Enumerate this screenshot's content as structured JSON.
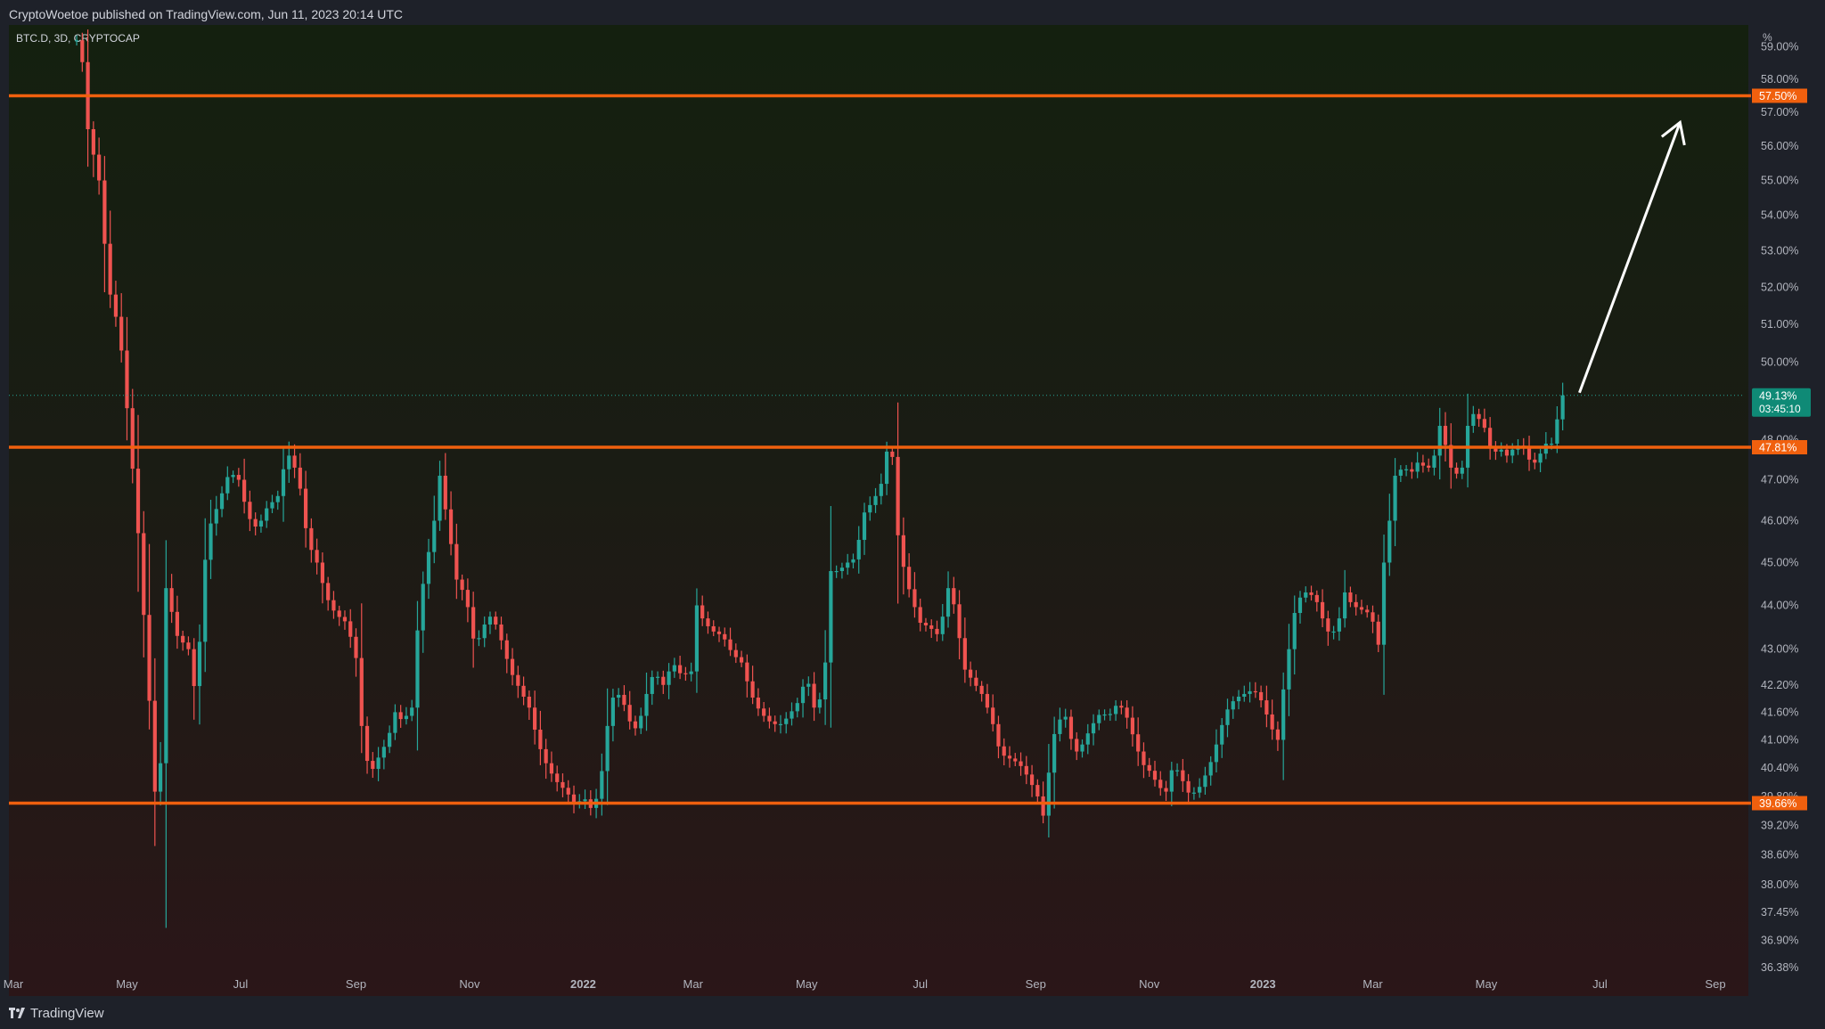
{
  "header": {
    "published_by": "CryptoWoetoe published on TradingView.com, Jun 11, 2023 20:14 UTC"
  },
  "footer": {
    "brand": "TradingView"
  },
  "colors": {
    "up": "#26a69a",
    "down": "#ef5350",
    "level_line": "#f0600e",
    "last_price_bg": "#0f8a76",
    "axis_text": "#b2b5be",
    "arrow": "#ffffff"
  },
  "chart_data": {
    "type": "candlestick",
    "symbol_label": "BTC.D, 3D, CRYPTOCAP",
    "y_unit": "%",
    "y_scale": "log",
    "ylim": [
      36.2,
      59.2
    ],
    "xlim": [
      "2021-03-01",
      "2023-09-30"
    ],
    "x_ticks": [
      {
        "date": "2021-03-01",
        "label": "Mar",
        "bold": false
      },
      {
        "date": "2021-05-01",
        "label": "May",
        "bold": false
      },
      {
        "date": "2021-07-01",
        "label": "Jul",
        "bold": false
      },
      {
        "date": "2021-09-01",
        "label": "Sep",
        "bold": false
      },
      {
        "date": "2021-11-01",
        "label": "Nov",
        "bold": false
      },
      {
        "date": "2022-01-01",
        "label": "2022",
        "bold": true
      },
      {
        "date": "2022-03-01",
        "label": "Mar",
        "bold": false
      },
      {
        "date": "2022-05-01",
        "label": "May",
        "bold": false
      },
      {
        "date": "2022-07-01",
        "label": "Jul",
        "bold": false
      },
      {
        "date": "2022-09-01",
        "label": "Sep",
        "bold": false
      },
      {
        "date": "2022-11-01",
        "label": "Nov",
        "bold": false
      },
      {
        "date": "2023-01-01",
        "label": "2023",
        "bold": true
      },
      {
        "date": "2023-03-01",
        "label": "Mar",
        "bold": false
      },
      {
        "date": "2023-05-01",
        "label": "May",
        "bold": false
      },
      {
        "date": "2023-07-01",
        "label": "Jul",
        "bold": false
      },
      {
        "date": "2023-09-01",
        "label": "Sep",
        "bold": false
      }
    ],
    "y_ticks": [
      {
        "value": 59.0,
        "label": "59.00%"
      },
      {
        "value": 58.0,
        "label": "58.00%"
      },
      {
        "value": 57.0,
        "label": "57.00%"
      },
      {
        "value": 56.0,
        "label": "56.00%"
      },
      {
        "value": 55.0,
        "label": "55.00%"
      },
      {
        "value": 54.0,
        "label": "54.00%"
      },
      {
        "value": 53.0,
        "label": "53.00%"
      },
      {
        "value": 52.0,
        "label": "52.00%"
      },
      {
        "value": 51.0,
        "label": "51.00%"
      },
      {
        "value": 50.0,
        "label": "50.00%"
      },
      {
        "value": 48.0,
        "label": "48.00%"
      },
      {
        "value": 47.0,
        "label": "47.00%"
      },
      {
        "value": 46.0,
        "label": "46.00%"
      },
      {
        "value": 45.0,
        "label": "45.00%"
      },
      {
        "value": 44.0,
        "label": "44.00%"
      },
      {
        "value": 43.0,
        "label": "43.00%"
      },
      {
        "value": 42.2,
        "label": "42.20%"
      },
      {
        "value": 41.6,
        "label": "41.60%"
      },
      {
        "value": 41.0,
        "label": "41.00%"
      },
      {
        "value": 40.4,
        "label": "40.40%"
      },
      {
        "value": 39.8,
        "label": "39.80%"
      },
      {
        "value": 39.2,
        "label": "39.20%"
      },
      {
        "value": 38.6,
        "label": "38.60%"
      },
      {
        "value": 38.0,
        "label": "38.00%"
      },
      {
        "value": 37.45,
        "label": "37.45%"
      },
      {
        "value": 36.9,
        "label": "36.90%"
      },
      {
        "value": 36.38,
        "label": "36.38%"
      }
    ],
    "horizontal_levels": [
      {
        "value": 57.5,
        "label": "57.50%"
      },
      {
        "value": 47.81,
        "label": "47.81%"
      },
      {
        "value": 39.66,
        "label": "39.66%"
      }
    ],
    "last_price": {
      "value": 49.13,
      "label": "49.13%",
      "countdown": "03:45:10"
    },
    "arrow_annotation": {
      "from": {
        "date": "2023-06-20",
        "value": 49.2
      },
      "to": {
        "date": "2023-08-13",
        "value": 56.7
      }
    },
    "anchors": [
      {
        "date": "2021-04-06",
        "value": 59.2
      },
      {
        "date": "2021-04-10",
        "value": 56.5
      },
      {
        "date": "2021-04-16",
        "value": 55.0
      },
      {
        "date": "2021-04-21",
        "value": 52.0
      },
      {
        "date": "2021-04-27",
        "value": 50.8
      },
      {
        "date": "2021-05-03",
        "value": 47.8
      },
      {
        "date": "2021-05-07",
        "value": 45.7
      },
      {
        "date": "2021-05-12",
        "value": 42.5
      },
      {
        "date": "2021-05-16",
        "value": 39.9
      },
      {
        "date": "2021-05-19",
        "value": 40.5
      },
      {
        "date": "2021-05-22",
        "value": 44.4
      },
      {
        "date": "2021-05-28",
        "value": 43.3
      },
      {
        "date": "2021-06-03",
        "value": 43.0
      },
      {
        "date": "2021-06-07",
        "value": 41.9
      },
      {
        "date": "2021-06-13",
        "value": 45.7
      },
      {
        "date": "2021-06-19",
        "value": 46.4
      },
      {
        "date": "2021-06-25",
        "value": 47.2
      },
      {
        "date": "2021-06-30",
        "value": 47.0
      },
      {
        "date": "2021-07-05",
        "value": 46.1
      },
      {
        "date": "2021-07-10",
        "value": 45.8
      },
      {
        "date": "2021-07-15",
        "value": 46.3
      },
      {
        "date": "2021-07-21",
        "value": 46.6
      },
      {
        "date": "2021-07-26",
        "value": 47.7
      },
      {
        "date": "2021-08-01",
        "value": 47.1
      },
      {
        "date": "2021-08-06",
        "value": 45.5
      },
      {
        "date": "2021-08-11",
        "value": 45.0
      },
      {
        "date": "2021-08-16",
        "value": 44.2
      },
      {
        "date": "2021-08-21",
        "value": 43.8
      },
      {
        "date": "2021-08-27",
        "value": 43.6
      },
      {
        "date": "2021-09-01",
        "value": 42.8
      },
      {
        "date": "2021-09-05",
        "value": 40.8
      },
      {
        "date": "2021-09-09",
        "value": 40.3
      },
      {
        "date": "2021-09-14",
        "value": 40.7
      },
      {
        "date": "2021-09-18",
        "value": 41.0
      },
      {
        "date": "2021-09-22",
        "value": 41.6
      },
      {
        "date": "2021-09-26",
        "value": 41.4
      },
      {
        "date": "2021-10-01",
        "value": 41.7
      },
      {
        "date": "2021-10-05",
        "value": 44.0
      },
      {
        "date": "2021-10-09",
        "value": 45.0
      },
      {
        "date": "2021-10-13",
        "value": 46.0
      },
      {
        "date": "2021-10-16",
        "value": 47.1
      },
      {
        "date": "2021-10-20",
        "value": 46.0
      },
      {
        "date": "2021-10-25",
        "value": 44.6
      },
      {
        "date": "2021-10-30",
        "value": 44.2
      },
      {
        "date": "2021-11-04",
        "value": 43.0
      },
      {
        "date": "2021-11-08",
        "value": 43.5
      },
      {
        "date": "2021-11-13",
        "value": 43.8
      },
      {
        "date": "2021-11-18",
        "value": 43.2
      },
      {
        "date": "2021-11-23",
        "value": 42.5
      },
      {
        "date": "2021-11-28",
        "value": 42.1
      },
      {
        "date": "2021-12-03",
        "value": 41.7
      },
      {
        "date": "2021-12-08",
        "value": 40.9
      },
      {
        "date": "2021-12-13",
        "value": 40.4
      },
      {
        "date": "2021-12-18",
        "value": 40.1
      },
      {
        "date": "2021-12-23",
        "value": 39.9
      },
      {
        "date": "2021-12-28",
        "value": 39.6
      },
      {
        "date": "2022-01-01",
        "value": 39.8
      },
      {
        "date": "2022-01-06",
        "value": 39.5
      },
      {
        "date": "2022-01-10",
        "value": 40.0
      },
      {
        "date": "2022-01-13",
        "value": 41.0
      },
      {
        "date": "2022-01-16",
        "value": 41.9
      },
      {
        "date": "2022-01-21",
        "value": 42.0
      },
      {
        "date": "2022-01-26",
        "value": 41.4
      },
      {
        "date": "2022-01-30",
        "value": 41.2
      },
      {
        "date": "2022-02-04",
        "value": 42.0
      },
      {
        "date": "2022-02-08",
        "value": 42.5
      },
      {
        "date": "2022-02-13",
        "value": 42.2
      },
      {
        "date": "2022-02-18",
        "value": 42.7
      },
      {
        "date": "2022-02-23",
        "value": 42.4
      },
      {
        "date": "2022-02-28",
        "value": 42.5
      },
      {
        "date": "2022-03-03",
        "value": 44.0
      },
      {
        "date": "2022-03-07",
        "value": 43.6
      },
      {
        "date": "2022-03-12",
        "value": 43.4
      },
      {
        "date": "2022-03-17",
        "value": 43.3
      },
      {
        "date": "2022-03-22",
        "value": 42.9
      },
      {
        "date": "2022-03-27",
        "value": 42.7
      },
      {
        "date": "2022-04-01",
        "value": 42.0
      },
      {
        "date": "2022-04-06",
        "value": 41.6
      },
      {
        "date": "2022-04-11",
        "value": 41.4
      },
      {
        "date": "2022-04-16",
        "value": 41.3
      },
      {
        "date": "2022-04-21",
        "value": 41.5
      },
      {
        "date": "2022-04-26",
        "value": 41.8
      },
      {
        "date": "2022-05-01",
        "value": 42.4
      },
      {
        "date": "2022-05-05",
        "value": 41.7
      },
      {
        "date": "2022-05-10",
        "value": 42.0
      },
      {
        "date": "2022-05-14",
        "value": 44.8
      },
      {
        "date": "2022-05-18",
        "value": 44.8
      },
      {
        "date": "2022-05-23",
        "value": 45.0
      },
      {
        "date": "2022-05-27",
        "value": 45.1
      },
      {
        "date": "2022-06-01",
        "value": 46.2
      },
      {
        "date": "2022-06-06",
        "value": 46.5
      },
      {
        "date": "2022-06-11",
        "value": 47.0
      },
      {
        "date": "2022-06-15",
        "value": 48.4
      },
      {
        "date": "2022-06-18",
        "value": 45.9
      },
      {
        "date": "2022-06-22",
        "value": 44.9
      },
      {
        "date": "2022-06-26",
        "value": 44.2
      },
      {
        "date": "2022-07-01",
        "value": 43.6
      },
      {
        "date": "2022-07-06",
        "value": 43.5
      },
      {
        "date": "2022-07-11",
        "value": 43.3
      },
      {
        "date": "2022-07-16",
        "value": 44.4
      },
      {
        "date": "2022-07-20",
        "value": 43.9
      },
      {
        "date": "2022-07-24",
        "value": 42.6
      },
      {
        "date": "2022-07-29",
        "value": 42.3
      },
      {
        "date": "2022-08-03",
        "value": 42.0
      },
      {
        "date": "2022-08-08",
        "value": 41.5
      },
      {
        "date": "2022-08-13",
        "value": 40.7
      },
      {
        "date": "2022-08-18",
        "value": 40.6
      },
      {
        "date": "2022-08-23",
        "value": 40.5
      },
      {
        "date": "2022-08-28",
        "value": 40.2
      },
      {
        "date": "2022-09-02",
        "value": 39.8
      },
      {
        "date": "2022-09-05",
        "value": 39.4
      },
      {
        "date": "2022-09-08",
        "value": 40.3
      },
      {
        "date": "2022-09-12",
        "value": 41.4
      },
      {
        "date": "2022-09-17",
        "value": 41.5
      },
      {
        "date": "2022-09-22",
        "value": 40.7
      },
      {
        "date": "2022-09-26",
        "value": 40.9
      },
      {
        "date": "2022-10-01",
        "value": 41.3
      },
      {
        "date": "2022-10-06",
        "value": 41.6
      },
      {
        "date": "2022-10-10",
        "value": 41.5
      },
      {
        "date": "2022-10-15",
        "value": 41.8
      },
      {
        "date": "2022-10-19",
        "value": 41.6
      },
      {
        "date": "2022-10-24",
        "value": 41.0
      },
      {
        "date": "2022-10-28",
        "value": 40.5
      },
      {
        "date": "2022-11-02",
        "value": 40.3
      },
      {
        "date": "2022-11-06",
        "value": 40.0
      },
      {
        "date": "2022-11-10",
        "value": 39.9
      },
      {
        "date": "2022-11-14",
        "value": 40.5
      },
      {
        "date": "2022-11-18",
        "value": 40.2
      },
      {
        "date": "2022-11-23",
        "value": 39.8
      },
      {
        "date": "2022-11-28",
        "value": 40.0
      },
      {
        "date": "2022-12-03",
        "value": 40.4
      },
      {
        "date": "2022-12-07",
        "value": 40.9
      },
      {
        "date": "2022-12-12",
        "value": 41.6
      },
      {
        "date": "2022-12-17",
        "value": 41.9
      },
      {
        "date": "2022-12-22",
        "value": 42.0
      },
      {
        "date": "2022-12-27",
        "value": 42.1
      },
      {
        "date": "2023-01-01",
        "value": 41.8
      },
      {
        "date": "2023-01-05",
        "value": 41.3
      },
      {
        "date": "2023-01-09",
        "value": 41.0
      },
      {
        "date": "2023-01-12",
        "value": 42.1
      },
      {
        "date": "2023-01-15",
        "value": 43.0
      },
      {
        "date": "2023-01-19",
        "value": 44.1
      },
      {
        "date": "2023-01-24",
        "value": 44.3
      },
      {
        "date": "2023-01-29",
        "value": 44.2
      },
      {
        "date": "2023-02-02",
        "value": 43.7
      },
      {
        "date": "2023-02-06",
        "value": 43.3
      },
      {
        "date": "2023-02-10",
        "value": 43.5
      },
      {
        "date": "2023-02-14",
        "value": 44.3
      },
      {
        "date": "2023-02-18",
        "value": 44.0
      },
      {
        "date": "2023-02-23",
        "value": 43.9
      },
      {
        "date": "2023-02-28",
        "value": 43.8
      },
      {
        "date": "2023-03-04",
        "value": 43.1
      },
      {
        "date": "2023-03-07",
        "value": 45.0
      },
      {
        "date": "2023-03-10",
        "value": 46.0
      },
      {
        "date": "2023-03-13",
        "value": 47.1
      },
      {
        "date": "2023-03-17",
        "value": 47.3
      },
      {
        "date": "2023-03-22",
        "value": 47.2
      },
      {
        "date": "2023-03-26",
        "value": 47.5
      },
      {
        "date": "2023-03-30",
        "value": 47.2
      },
      {
        "date": "2023-04-03",
        "value": 47.6
      },
      {
        "date": "2023-04-07",
        "value": 48.6
      },
      {
        "date": "2023-04-10",
        "value": 47.5
      },
      {
        "date": "2023-04-14",
        "value": 47.1
      },
      {
        "date": "2023-04-18",
        "value": 47.3
      },
      {
        "date": "2023-04-22",
        "value": 48.7
      },
      {
        "date": "2023-04-26",
        "value": 48.6
      },
      {
        "date": "2023-04-30",
        "value": 48.3
      },
      {
        "date": "2023-05-04",
        "value": 47.6
      },
      {
        "date": "2023-05-08",
        "value": 47.8
      },
      {
        "date": "2023-05-12",
        "value": 47.6
      },
      {
        "date": "2023-05-16",
        "value": 47.8
      },
      {
        "date": "2023-05-20",
        "value": 47.9
      },
      {
        "date": "2023-05-24",
        "value": 47.5
      },
      {
        "date": "2023-05-28",
        "value": 47.4
      },
      {
        "date": "2023-06-01",
        "value": 47.9
      },
      {
        "date": "2023-06-05",
        "value": 47.9
      },
      {
        "date": "2023-06-11",
        "value": 49.13
      }
    ]
  }
}
